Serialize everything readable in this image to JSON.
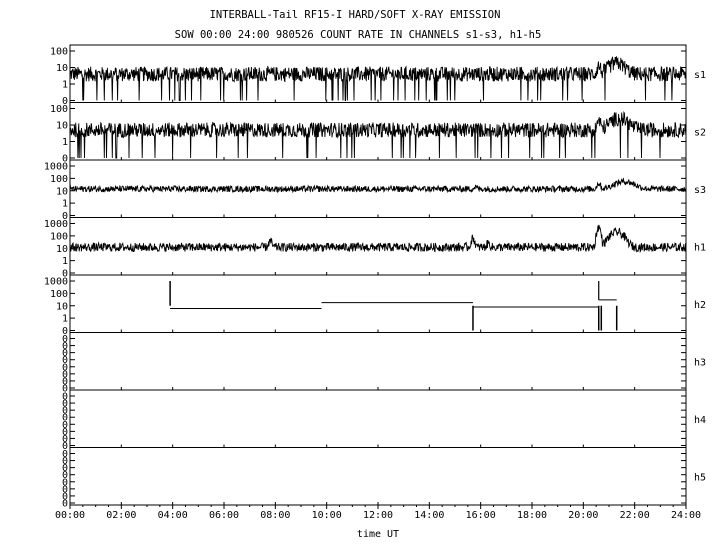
{
  "chart_data": {
    "type": "line",
    "title": "INTERBALL-Tail RF15-I HARD/SOFT X-RAY EMISSION",
    "subtitle": "SOW 00:00 24:00 980526  COUNT RATE IN CHANNELS s1-s3, h1-h5",
    "xlabel": "time UT",
    "x_ticks": [
      "00:00",
      "02:00",
      "04:00",
      "06:00",
      "08:00",
      "10:00",
      "12:00",
      "14:00",
      "16:00",
      "18:00",
      "20:00",
      "22:00",
      "24:00"
    ],
    "xlim_hours": [
      0,
      24
    ],
    "grid": false,
    "panels": [
      {
        "name": "s1",
        "y_ticks": [
          "100",
          "10",
          "1",
          "0"
        ],
        "baseline": 4,
        "noise": 0.45,
        "dropouts": true,
        "events": [
          {
            "t": 20.6,
            "peak": 12
          },
          {
            "t": 21.3,
            "peak": 18,
            "width": 0.35
          }
        ]
      },
      {
        "name": "s2",
        "y_ticks": [
          "100",
          "10",
          "1",
          "0"
        ],
        "baseline": 5,
        "noise": 0.45,
        "dropouts": true,
        "events": [
          {
            "t": 1.8,
            "dip": 0
          },
          {
            "t": 20.6,
            "peak": 18
          },
          {
            "t": 21.4,
            "peak": 25,
            "width": 0.4
          }
        ]
      },
      {
        "name": "s3",
        "y_ticks": [
          "1000",
          "100",
          "10",
          "1",
          "0"
        ],
        "baseline": 14,
        "noise": 0.25,
        "dropouts": false,
        "events": [
          {
            "t": 15.8,
            "peak": 20
          },
          {
            "t": 20.6,
            "peak": 40
          },
          {
            "t": 21.6,
            "peak": 55,
            "width": 0.45
          }
        ]
      },
      {
        "name": "h1",
        "y_ticks": [
          "1000",
          "100",
          "10",
          "1",
          "0"
        ],
        "baseline": 12,
        "noise": 0.35,
        "dropouts": false,
        "events": [
          {
            "t": 7.8,
            "peak": 35
          },
          {
            "t": 15.7,
            "peak": 60
          },
          {
            "t": 16.3,
            "peak": 25
          },
          {
            "t": 20.6,
            "peak": 500
          },
          {
            "t": 21.3,
            "peak": 200,
            "width": 0.3
          }
        ]
      },
      {
        "name": "h2",
        "y_ticks": [
          "1000",
          "100",
          "10",
          "1",
          "0"
        ],
        "steps": [
          {
            "from": 3.9,
            "to": 9.8,
            "value": 6
          },
          {
            "from": 9.8,
            "to": 15.7,
            "value": 18
          },
          {
            "from": 15.7,
            "to": 20.6,
            "value": 8
          },
          {
            "from": 20.6,
            "to": 21.3,
            "value": 30
          }
        ],
        "spikes": [
          {
            "t": 3.9,
            "to": 1000
          },
          {
            "t": 15.7,
            "to": 0
          },
          {
            "t": 20.6,
            "to": 0
          },
          {
            "t": 20.7,
            "to": 0
          },
          {
            "t": 21.3,
            "to": 0
          }
        ]
      },
      {
        "name": "h3",
        "y_ticks": [
          "0",
          "0",
          "0",
          "0",
          "0",
          "0",
          "0",
          "0"
        ]
      },
      {
        "name": "h4",
        "y_ticks": [
          "0",
          "0",
          "0",
          "0",
          "0",
          "0",
          "0",
          "0"
        ]
      },
      {
        "name": "h5",
        "y_ticks": [
          "0",
          "0",
          "0",
          "0",
          "0",
          "0",
          "0",
          "0"
        ]
      }
    ]
  }
}
